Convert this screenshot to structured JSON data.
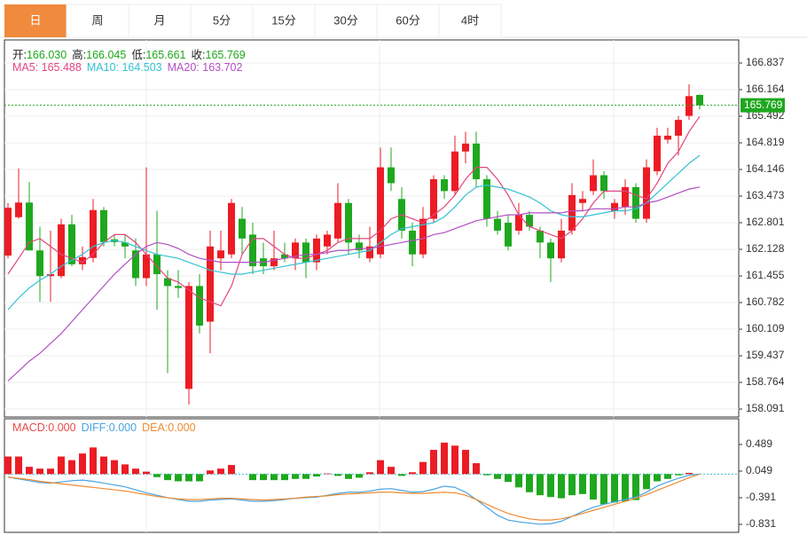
{
  "tabs": [
    "日",
    "周",
    "月",
    "5分",
    "15分",
    "30分",
    "60分",
    "4时"
  ],
  "active_tab": 0,
  "chart_data": [
    {
      "type": "candlestick",
      "info": [
        {
          "label": "开:",
          "value": "166.030"
        },
        {
          "label": "高:",
          "value": "166.045"
        },
        {
          "label": "低:",
          "value": "165.661"
        },
        {
          "label": "收:",
          "value": "165.769"
        }
      ],
      "open": [
        161.97,
        162.94,
        163.31,
        162.1,
        161.45,
        161.45,
        162.76,
        161.75,
        161.91,
        163.12,
        162.38,
        162.3,
        162.1,
        161.4,
        162.0,
        161.4,
        161.2,
        158.6,
        161.2,
        160.3,
        161.9,
        162.0,
        162.9,
        162.5,
        161.9,
        161.7,
        162.0,
        161.9,
        162.3,
        161.8,
        162.2,
        162.4,
        163.3,
        162.3,
        161.9,
        162.0,
        164.2,
        163.4,
        162.6,
        162.0,
        162.9,
        163.9,
        163.6,
        164.6,
        164.8,
        163.9,
        162.9,
        162.8,
        162.6,
        163.0,
        162.6,
        162.3,
        161.9,
        162.6,
        163.3,
        163.6,
        164.0,
        163.1,
        163.2,
        163.7,
        162.9,
        164.1,
        164.9,
        165.0,
        165.5,
        166.03
      ],
      "high": [
        163.3,
        164.17,
        163.83,
        162.7,
        162.6,
        162.9,
        163.0,
        162.2,
        163.4,
        163.2,
        162.5,
        162.5,
        162.4,
        164.2,
        163.1,
        161.6,
        161.6,
        161.3,
        161.5,
        162.6,
        162.6,
        163.4,
        163.2,
        162.8,
        162.3,
        162.6,
        162.3,
        162.4,
        162.4,
        162.5,
        162.6,
        163.8,
        163.4,
        162.5,
        162.7,
        164.7,
        164.7,
        163.7,
        162.8,
        163.2,
        164.0,
        164.0,
        165.0,
        165.1,
        165.1,
        164.0,
        163.1,
        163.0,
        163.3,
        163.1,
        162.7,
        162.4,
        162.9,
        163.8,
        163.6,
        164.4,
        164.1,
        163.4,
        163.9,
        163.8,
        164.4,
        165.2,
        165.2,
        165.5,
        166.3,
        166.045
      ],
      "low": [
        161.9,
        162.9,
        162.1,
        160.8,
        160.8,
        161.4,
        161.7,
        161.6,
        161.8,
        162.2,
        162.2,
        161.9,
        161.2,
        161.2,
        160.6,
        159.0,
        160.9,
        158.2,
        160.0,
        159.5,
        161.6,
        161.9,
        162.0,
        161.5,
        161.5,
        161.6,
        161.8,
        161.6,
        161.4,
        161.6,
        162.0,
        162.3,
        162.0,
        161.9,
        161.8,
        161.9,
        163.6,
        162.4,
        161.7,
        161.9,
        162.8,
        163.4,
        163.5,
        164.3,
        163.7,
        162.7,
        162.5,
        162.1,
        162.5,
        162.6,
        161.9,
        161.3,
        161.8,
        162.5,
        163.1,
        163.5,
        163.4,
        162.9,
        163.0,
        162.8,
        162.8,
        164.0,
        164.8,
        164.5,
        165.4,
        165.661
      ],
      "close": [
        163.18,
        163.31,
        162.1,
        161.45,
        161.5,
        162.76,
        161.75,
        161.93,
        163.12,
        162.31,
        162.31,
        162.2,
        161.4,
        162.0,
        161.5,
        161.2,
        161.15,
        161.2,
        160.2,
        162.2,
        162.1,
        163.3,
        162.4,
        161.7,
        161.7,
        161.9,
        161.9,
        162.3,
        161.8,
        162.4,
        162.5,
        163.3,
        162.3,
        162.1,
        162.2,
        164.2,
        163.8,
        162.6,
        162.0,
        162.9,
        163.9,
        163.6,
        164.6,
        164.8,
        163.9,
        162.9,
        162.6,
        162.2,
        163.0,
        162.7,
        162.3,
        161.9,
        162.6,
        163.5,
        163.4,
        164.0,
        163.6,
        163.3,
        163.7,
        162.9,
        164.2,
        165.0,
        165.0,
        165.4,
        166.0,
        165.769
      ],
      "up_color": "#ec1c24",
      "down_color": "#1ea81e",
      "series": [
        {
          "legend": "MA5: 165.488",
          "color": "#e2457f",
          "values": [
            161.5,
            161.9,
            162.3,
            162.4,
            162.2,
            162.0,
            161.9,
            161.8,
            162.0,
            162.3,
            162.5,
            162.5,
            162.3,
            162.0,
            161.7,
            161.4,
            161.3,
            161.1,
            160.9,
            160.8,
            160.7,
            161.2,
            162.0,
            162.4,
            162.4,
            162.2,
            162.0,
            161.9,
            161.9,
            162.0,
            162.1,
            162.3,
            162.4,
            162.4,
            162.4,
            162.6,
            162.9,
            163.0,
            162.9,
            162.8,
            163.0,
            163.2,
            163.5,
            163.9,
            164.2,
            164.2,
            163.9,
            163.5,
            163.0,
            162.7,
            162.6,
            162.5,
            162.4,
            162.6,
            162.9,
            163.3,
            163.6,
            163.6,
            163.6,
            163.5,
            163.4,
            163.8,
            164.3,
            164.6,
            165.1,
            165.488
          ]
        },
        {
          "legend": "MA10: 164.503",
          "color": "#33c2d4",
          "values": [
            160.6,
            160.9,
            161.15,
            161.35,
            161.5,
            161.7,
            161.85,
            162.0,
            162.2,
            162.3,
            162.35,
            162.3,
            162.2,
            162.1,
            162.0,
            161.95,
            161.9,
            161.8,
            161.7,
            161.6,
            161.55,
            161.5,
            161.5,
            161.55,
            161.6,
            161.65,
            161.7,
            161.75,
            161.8,
            161.85,
            161.9,
            161.95,
            162.0,
            162.05,
            162.1,
            162.3,
            162.5,
            162.65,
            162.7,
            162.75,
            162.8,
            162.95,
            163.2,
            163.5,
            163.7,
            163.75,
            163.7,
            163.65,
            163.55,
            163.45,
            163.3,
            163.1,
            163.0,
            162.95,
            162.95,
            163.0,
            163.05,
            163.1,
            163.1,
            163.15,
            163.3,
            163.55,
            163.8,
            164.05,
            164.3,
            164.503
          ]
        },
        {
          "legend": "MA20: 163.702",
          "color": "#b24fc4",
          "values": [
            158.8,
            159.05,
            159.3,
            159.5,
            159.75,
            160.0,
            160.3,
            160.6,
            160.9,
            161.2,
            161.5,
            161.75,
            162.0,
            162.2,
            162.3,
            162.25,
            162.15,
            162.0,
            161.9,
            161.85,
            161.8,
            161.8,
            161.8,
            161.8,
            161.8,
            161.85,
            161.9,
            161.95,
            162.0,
            162.0,
            162.05,
            162.1,
            162.1,
            162.15,
            162.15,
            162.2,
            162.25,
            162.3,
            162.35,
            162.4,
            162.5,
            162.55,
            162.65,
            162.75,
            162.85,
            162.9,
            162.95,
            163.0,
            163.0,
            163.05,
            163.05,
            163.05,
            163.05,
            163.1,
            163.1,
            163.15,
            163.15,
            163.15,
            163.2,
            163.2,
            163.3,
            163.35,
            163.45,
            163.55,
            163.65,
            163.702
          ]
        }
      ],
      "ylim": [
        157.89,
        167.42
      ],
      "yticks": [
        166.837,
        166.164,
        165.492,
        164.819,
        164.146,
        163.473,
        162.801,
        162.128,
        161.455,
        160.782,
        160.109,
        159.437,
        158.764,
        158.091
      ],
      "grid": true
    },
    {
      "type": "macd",
      "histogram": [
        0.29,
        0.29,
        0.12,
        0.09,
        0.09,
        0.29,
        0.23,
        0.34,
        0.44,
        0.29,
        0.23,
        0.16,
        0.09,
        0.04,
        -0.05,
        -0.1,
        -0.12,
        -0.12,
        -0.12,
        0.06,
        0.09,
        0.15,
        0,
        -0.1,
        -0.1,
        -0.1,
        -0.1,
        -0.08,
        -0.08,
        -0.04,
        0.01,
        -0.03,
        -0.08,
        -0.06,
        0.03,
        0.23,
        0.12,
        -0.03,
        0.03,
        0.2,
        0.4,
        0.52,
        0.47,
        0.4,
        0.18,
        -0.02,
        -0.08,
        -0.13,
        -0.22,
        -0.3,
        -0.35,
        -0.38,
        -0.4,
        -0.35,
        -0.33,
        -0.42,
        -0.5,
        -0.47,
        -0.45,
        -0.43,
        -0.25,
        -0.12,
        -0.08,
        -0.02,
        0.02,
        0
      ],
      "histogram_legend": "MACD:0.000",
      "histogram_color": "#e84a4a",
      "series": [
        {
          "legend": "DIFF:0.000",
          "color": "#4aa3e0",
          "values": [
            -0.05,
            -0.08,
            -0.11,
            -0.14,
            -0.15,
            -0.13,
            -0.11,
            -0.1,
            -0.12,
            -0.15,
            -0.18,
            -0.21,
            -0.26,
            -0.31,
            -0.35,
            -0.39,
            -0.42,
            -0.45,
            -0.45,
            -0.43,
            -0.42,
            -0.41,
            -0.43,
            -0.45,
            -0.45,
            -0.44,
            -0.42,
            -0.4,
            -0.39,
            -0.38,
            -0.35,
            -0.32,
            -0.3,
            -0.3,
            -0.28,
            -0.25,
            -0.24,
            -0.27,
            -0.3,
            -0.29,
            -0.25,
            -0.2,
            -0.22,
            -0.3,
            -0.42,
            -0.55,
            -0.68,
            -0.76,
            -0.79,
            -0.81,
            -0.83,
            -0.82,
            -0.78,
            -0.7,
            -0.62,
            -0.55,
            -0.5,
            -0.46,
            -0.42,
            -0.38,
            -0.3,
            -0.2,
            -0.13,
            -0.07,
            -0.02,
            0
          ]
        },
        {
          "legend": "DEA:0.000",
          "color": "#f08a30",
          "values": [
            -0.05,
            -0.07,
            -0.09,
            -0.12,
            -0.14,
            -0.16,
            -0.18,
            -0.2,
            -0.22,
            -0.24,
            -0.26,
            -0.28,
            -0.31,
            -0.34,
            -0.37,
            -0.39,
            -0.41,
            -0.42,
            -0.42,
            -0.41,
            -0.4,
            -0.4,
            -0.41,
            -0.42,
            -0.43,
            -0.42,
            -0.41,
            -0.4,
            -0.38,
            -0.37,
            -0.36,
            -0.34,
            -0.33,
            -0.32,
            -0.31,
            -0.3,
            -0.3,
            -0.31,
            -0.32,
            -0.32,
            -0.31,
            -0.3,
            -0.31,
            -0.35,
            -0.42,
            -0.5,
            -0.58,
            -0.65,
            -0.7,
            -0.74,
            -0.76,
            -0.76,
            -0.74,
            -0.7,
            -0.65,
            -0.6,
            -0.55,
            -0.5,
            -0.45,
            -0.4,
            -0.34,
            -0.27,
            -0.2,
            -0.13,
            -0.06,
            0
          ]
        }
      ],
      "ylim": [
        -0.963,
        0.914
      ],
      "yticks": [
        0.489,
        0.049,
        -0.391,
        -0.831
      ]
    }
  ]
}
